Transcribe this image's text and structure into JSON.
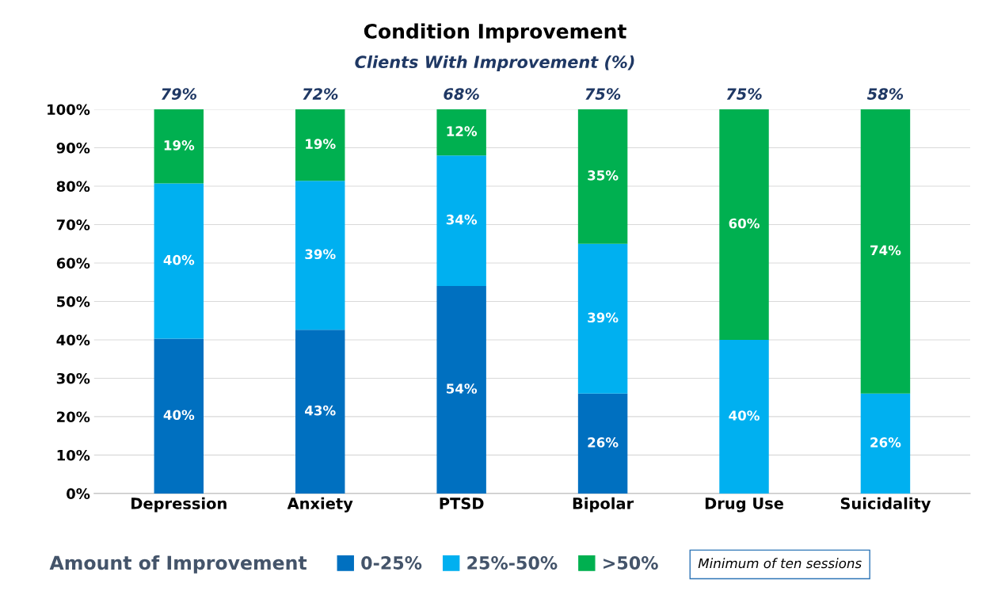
{
  "chart_data": {
    "type": "bar",
    "stacked": true,
    "title": "Condition Improvement",
    "subtitle": "Clients With Improvement (%)",
    "categories": [
      "Depression",
      "Anxiety",
      "PTSD",
      "Bipolar",
      "Drug Use",
      "Suicidality"
    ],
    "series": [
      {
        "name": "0-25%",
        "color": "#0070c0",
        "values": [
          40.3,
          42.6,
          54,
          26,
          0,
          0
        ],
        "value_labels": [
          "40%",
          "43%",
          "54%",
          "26%",
          null,
          null
        ]
      },
      {
        "name": "25%-50%",
        "color": "#00b0f0",
        "values": [
          40.4,
          38.8,
          34,
          39,
          40,
          26
        ],
        "value_labels": [
          "40%",
          "39%",
          "34%",
          "39%",
          "40%",
          "26%"
        ]
      },
      {
        "name": ">50%",
        "color": "#00b050",
        "values": [
          19.3,
          18.6,
          12,
          35,
          60,
          74
        ],
        "value_labels": [
          "19%",
          "19%",
          "12%",
          "35%",
          "60%",
          "74%"
        ]
      }
    ],
    "ylim": [
      0,
      100
    ],
    "yticks": [
      {
        "value": 0,
        "label": "0%"
      },
      {
        "value": 10,
        "label": "10%"
      },
      {
        "value": 20,
        "label": "20%"
      },
      {
        "value": 30,
        "label": "30%"
      },
      {
        "value": 40,
        "label": "40%"
      },
      {
        "value": 50,
        "label": "50%"
      },
      {
        "value": 60,
        "label": "60%"
      },
      {
        "value": 70,
        "label": "70%"
      },
      {
        "value": 80,
        "label": "80%"
      },
      {
        "value": 90,
        "label": "90%"
      },
      {
        "value": 100,
        "label": "100%"
      }
    ],
    "grid": "y",
    "legend": "bottom",
    "legend_title": "Amount of Improvement",
    "annotations": [
      {
        "text": "79%",
        "x": "Depression",
        "y": 100
      },
      {
        "text": "72%",
        "x": "Anxiety",
        "y": 100
      },
      {
        "text": "68%",
        "x": "PTSD",
        "y": 100
      },
      {
        "text": "75%",
        "x": "Bipolar",
        "y": 100
      },
      {
        "text": "75%",
        "x": "Drug Use",
        "y": 100
      },
      {
        "text": "58%",
        "x": "Suicidality",
        "y": 100
      },
      "Minimum of ten sessions"
    ]
  }
}
